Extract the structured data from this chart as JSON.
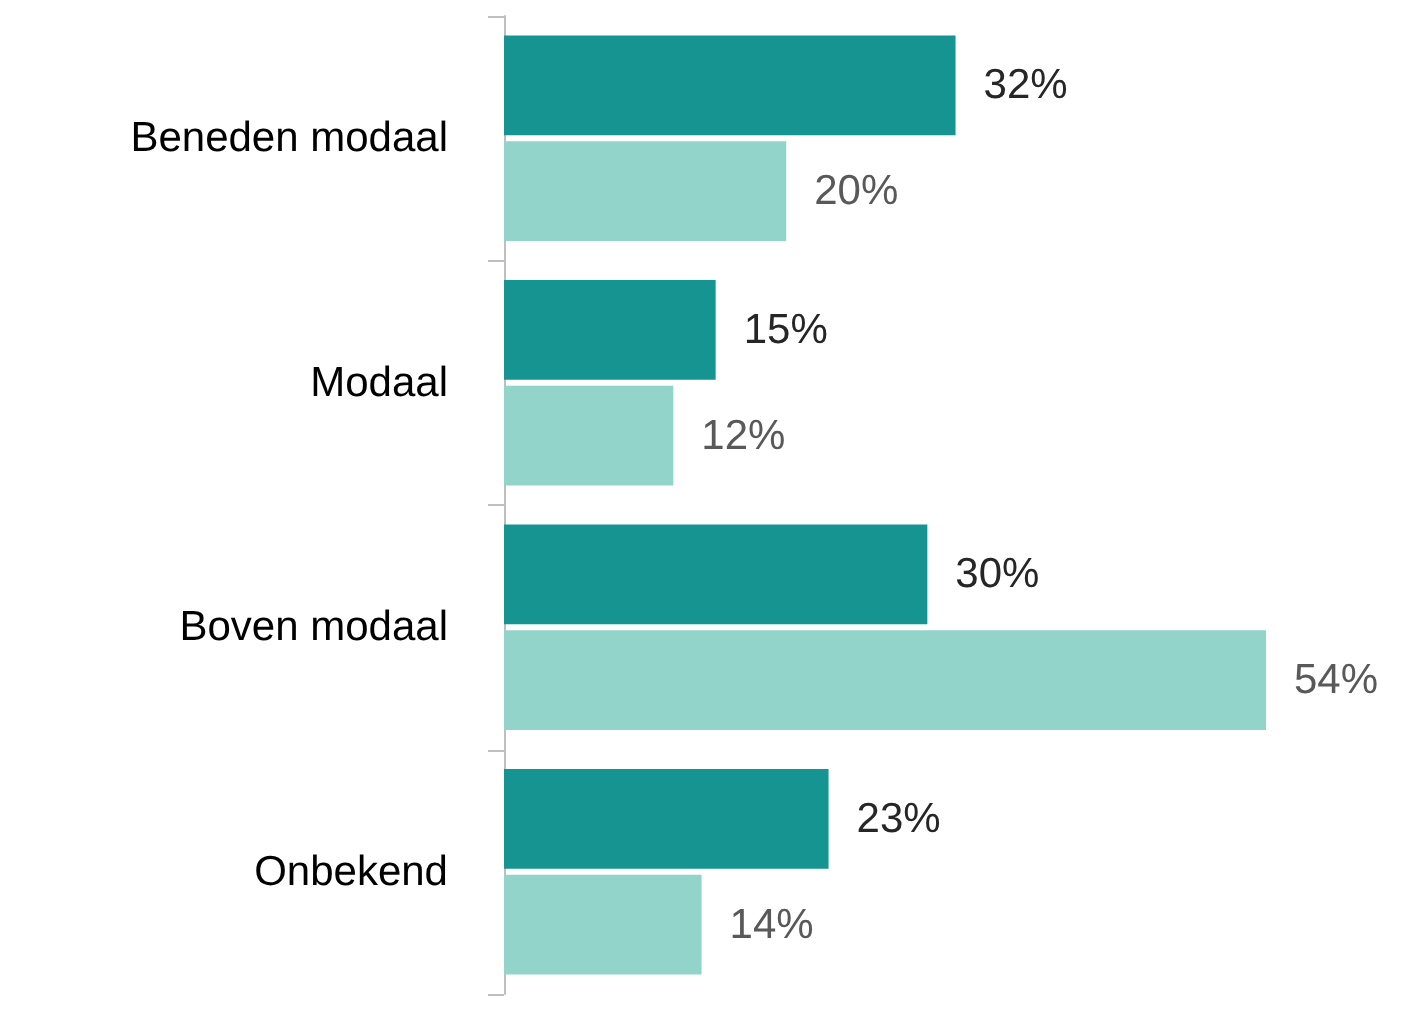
{
  "chart_data": {
    "type": "bar",
    "orientation": "horizontal",
    "categories": [
      "Beneden modaal",
      "Modaal",
      "Boven modaal",
      "Onbekend"
    ],
    "series": [
      {
        "color": "#169491",
        "values": [
          32,
          15,
          30,
          23
        ],
        "value_labels": [
          "32%",
          "15%",
          "30%",
          "23%"
        ]
      },
      {
        "color": "#92d4ca",
        "values": [
          20,
          12,
          54,
          14
        ],
        "value_labels": [
          "20%",
          "12%",
          "54%",
          "14%"
        ]
      }
    ],
    "tick_labels": "y",
    "grid": false
  }
}
